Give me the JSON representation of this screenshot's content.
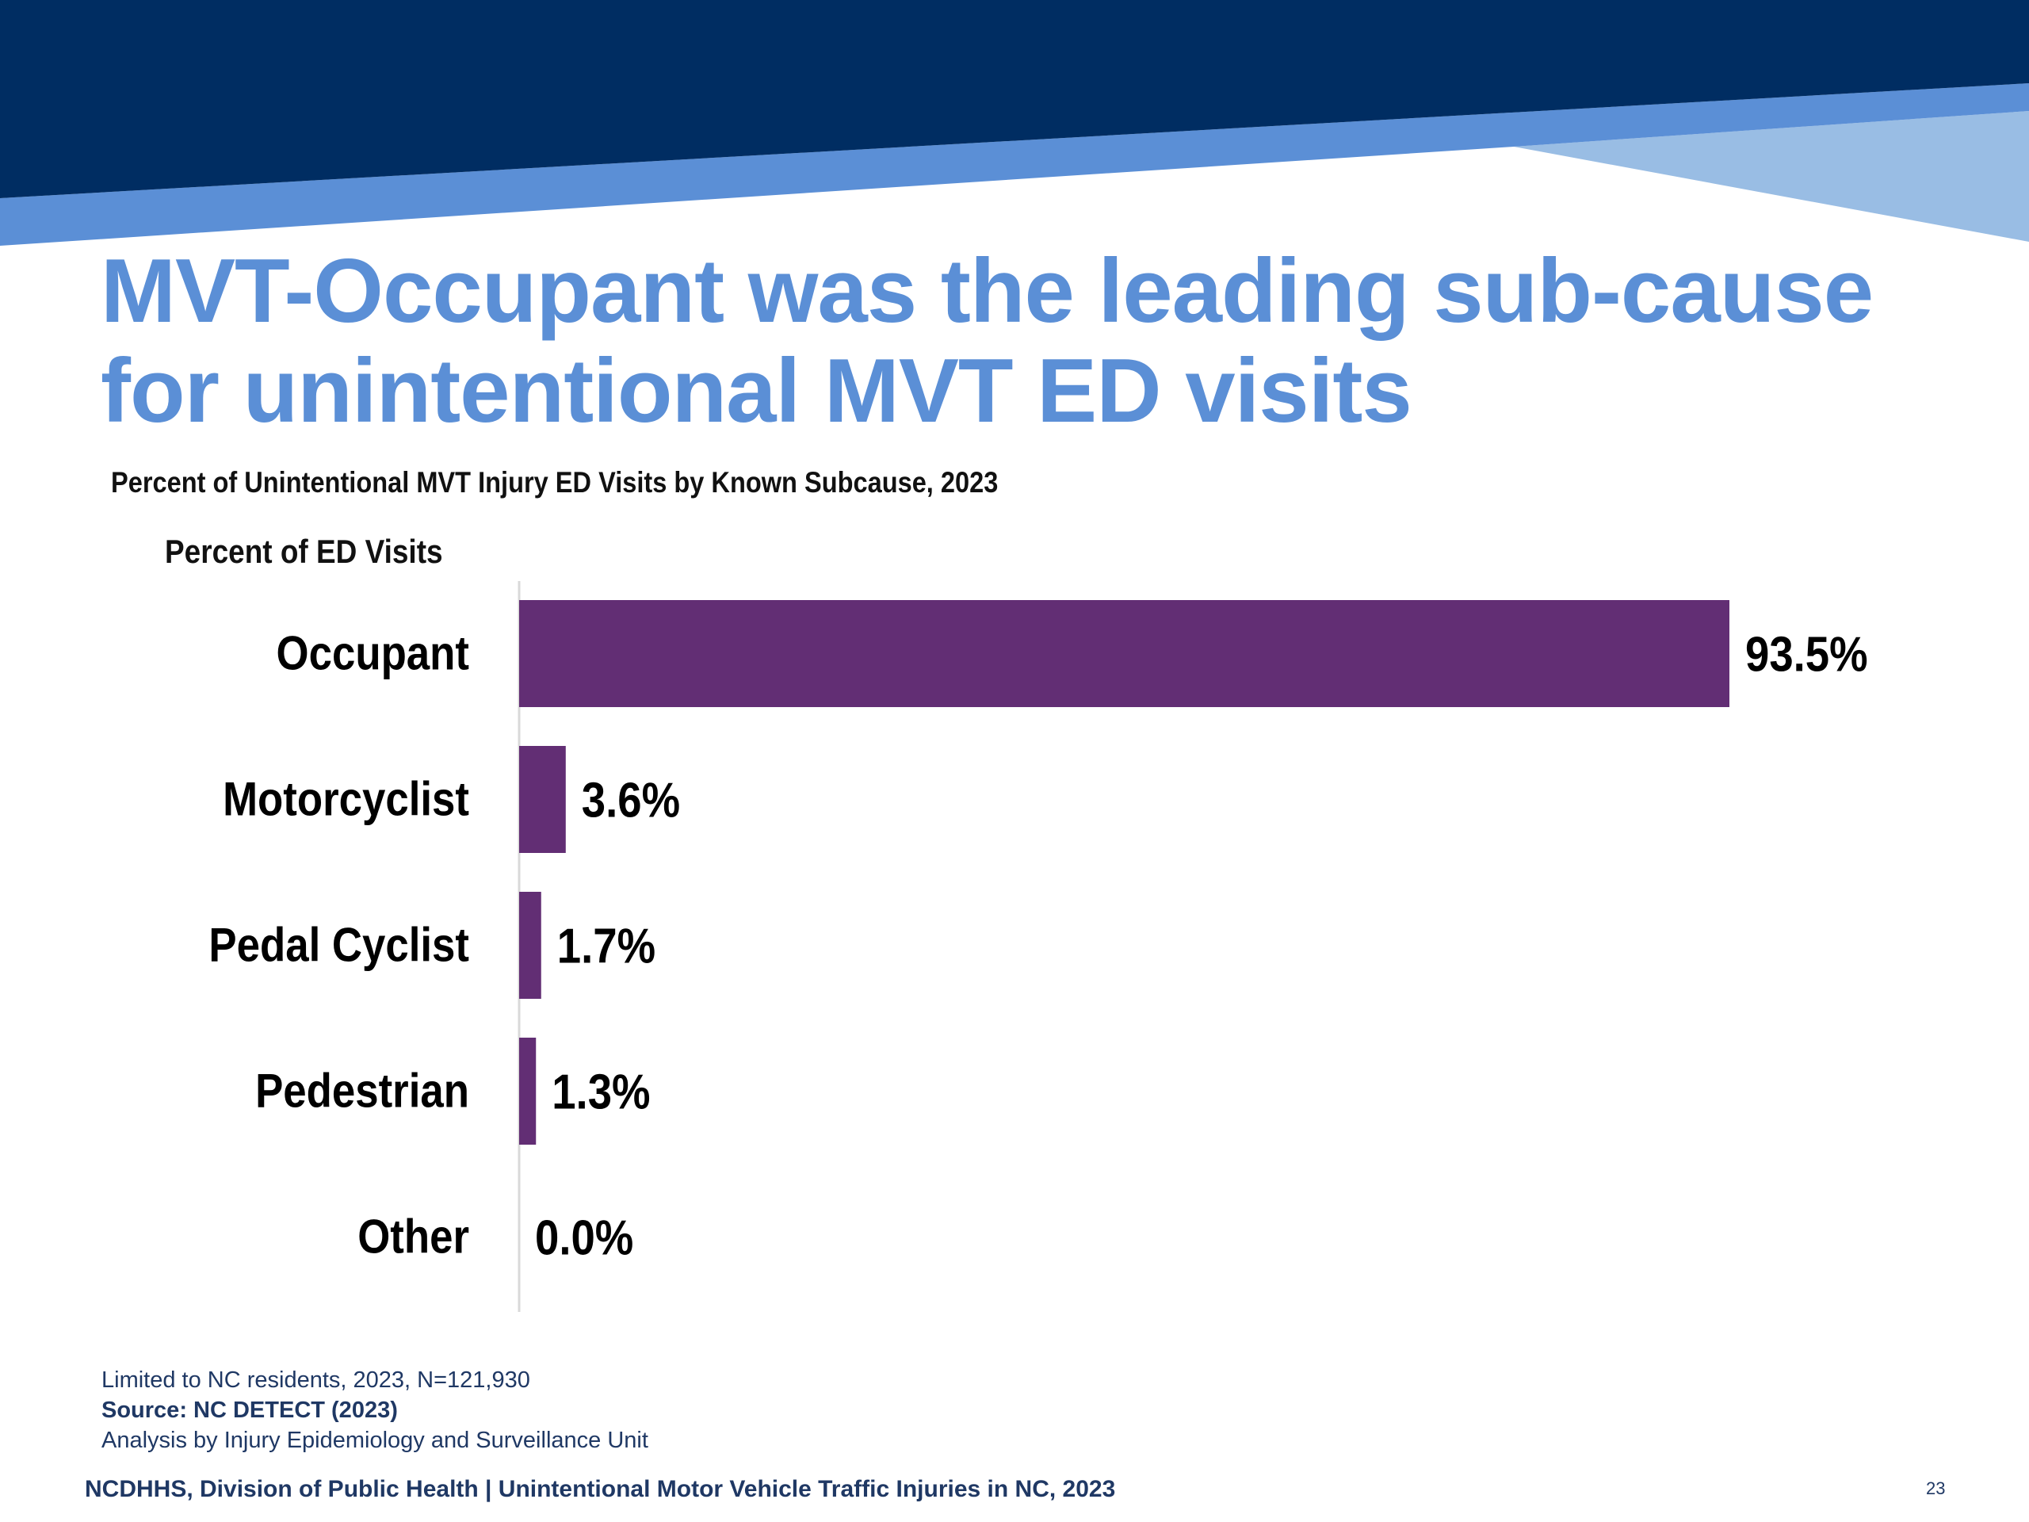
{
  "slide": {
    "title_line1": "MVT-Occupant was the leading sub-cause",
    "title_line2": "for unintentional MVT ED visits",
    "notes": {
      "population": "Limited to NC residents, 2023, N=121,930",
      "source": "Source: NC DETECT (2023)",
      "analysis": "Analysis by Injury Epidemiology and Surveillance Unit"
    },
    "footer": "NCDHHS, Division of Public Health | Unintentional Motor Vehicle Traffic Injuries in NC, 2023",
    "page_number": "23"
  },
  "colors": {
    "banner_dark": "#002d62",
    "banner_mid": "#5b8fd6",
    "banner_light": "#99bde4",
    "title": "#5b8fd6",
    "bar": "#622e74",
    "axis_line": "#d9d9d9"
  },
  "chart_data": {
    "type": "bar",
    "orientation": "horizontal",
    "title": "Percent of Unintentional MVT Injury ED Visits by Known Subcause, 2023",
    "xlabel": "Percent of ED Visits",
    "categories": [
      "Occupant",
      "Motorcyclist",
      "Pedal Cyclist",
      "Pedestrian",
      "Other"
    ],
    "values": [
      93.5,
      3.6,
      1.7,
      1.3,
      0.0
    ],
    "data_labels": [
      "93.5%",
      "3.6%",
      "1.7%",
      "1.3%",
      "0.0%"
    ],
    "xlim": [
      0,
      93.5
    ],
    "grid": false,
    "legend": "none"
  }
}
